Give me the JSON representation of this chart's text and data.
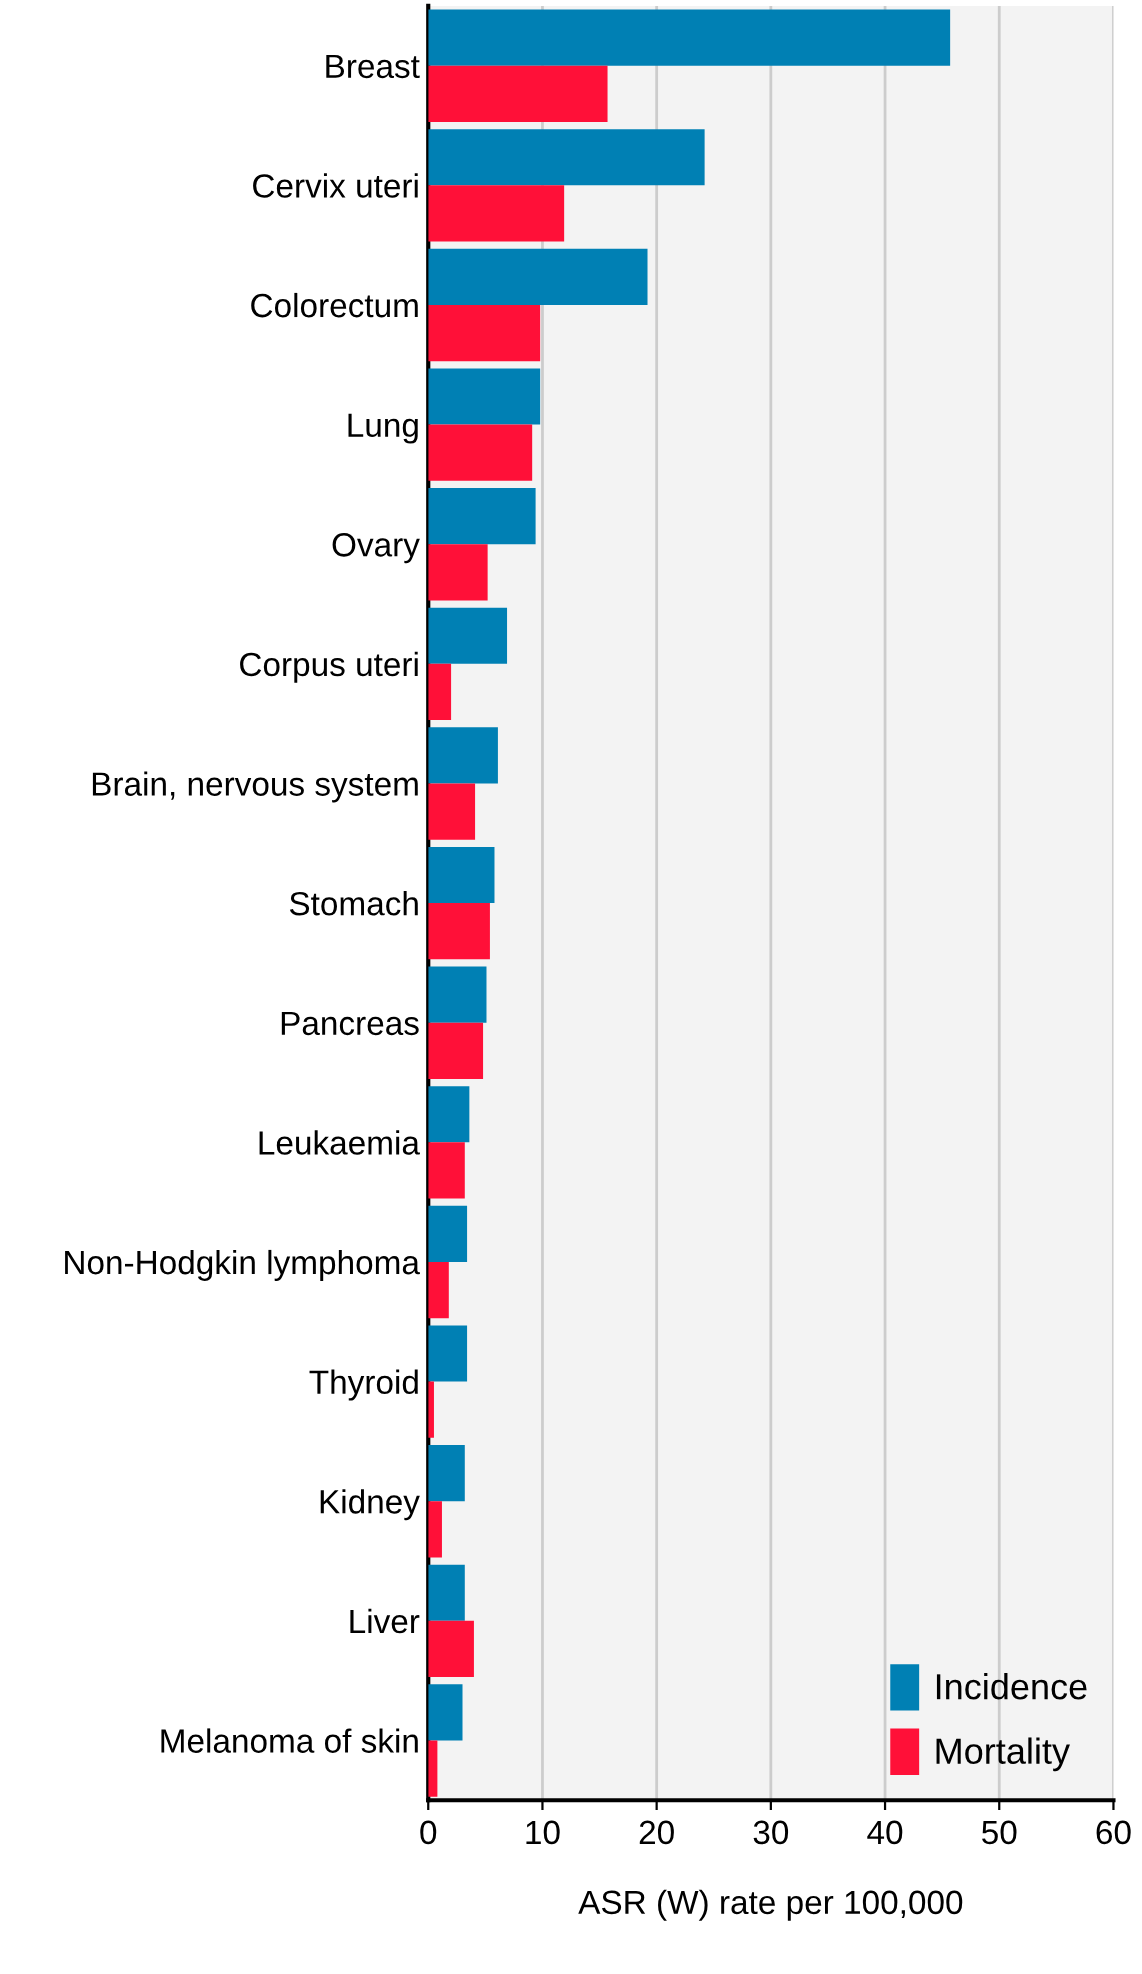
{
  "chart_data": {
    "type": "bar",
    "orientation": "horizontal",
    "xlabel": "ASR (W) rate per 100,000",
    "categories": [
      "Breast",
      "Cervix uteri",
      "Colorectum",
      "Lung",
      "Ovary",
      "Corpus uteri",
      "Brain, nervous system",
      "Stomach",
      "Pancreas",
      "Leukaemia",
      "Non-Hodgkin lymphoma",
      "Thyroid",
      "Kidney",
      "Liver",
      "Melanoma of skin"
    ],
    "series": [
      {
        "name": "Incidence",
        "color": "#0080b4",
        "values": [
          45.7,
          24.2,
          19.2,
          9.8,
          9.4,
          6.9,
          6.1,
          5.8,
          5.1,
          3.6,
          3.4,
          3.4,
          3.2,
          3.2,
          3.0
        ]
      },
      {
        "name": "Mortality",
        "color": "#ff1038",
        "values": [
          15.7,
          11.9,
          9.8,
          9.1,
          5.2,
          2.0,
          4.1,
          5.4,
          4.8,
          3.2,
          1.8,
          0.5,
          1.2,
          4.0,
          0.8
        ]
      }
    ],
    "xlim": [
      0,
      60
    ],
    "xticks": [
      0,
      10,
      20,
      30,
      40,
      50,
      60
    ],
    "grid": "x",
    "legend": "bottom right"
  }
}
